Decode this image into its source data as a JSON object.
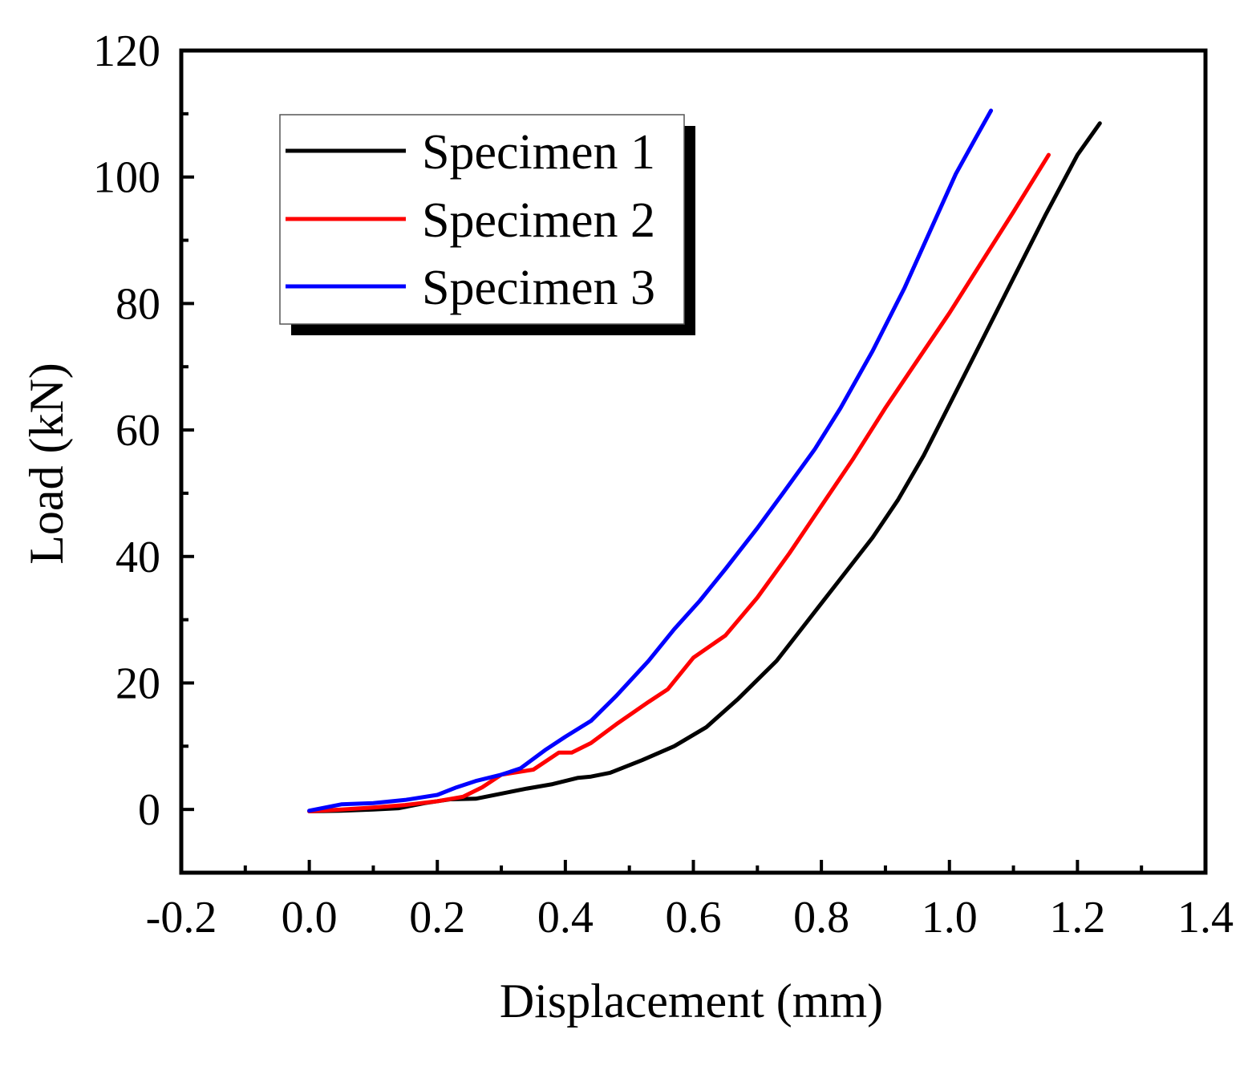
{
  "chart_data": {
    "type": "line",
    "xlabel": "Displacement (mm)",
    "ylabel": "Load (kN)",
    "xlim": [
      -0.2,
      1.4
    ],
    "ylim": [
      -10,
      120
    ],
    "xticks": [
      -0.2,
      0.0,
      0.2,
      0.4,
      0.6,
      0.8,
      1.0,
      1.2,
      1.4
    ],
    "xtick_labels": [
      "-0.2",
      "0.0",
      "0.2",
      "0.4",
      "0.6",
      "0.8",
      "1.0",
      "1.2",
      "1.4"
    ],
    "yticks": [
      0,
      20,
      40,
      60,
      80,
      100,
      120
    ],
    "ytick_labels": [
      "0",
      "20",
      "40",
      "60",
      "80",
      "100",
      "120"
    ],
    "grid": false,
    "legend_position": "top-left",
    "series": [
      {
        "name": "Specimen 1",
        "color": "#000000",
        "x": [
          0.0,
          0.05,
          0.1,
          0.14,
          0.18,
          0.22,
          0.26,
          0.3,
          0.34,
          0.38,
          0.42,
          0.44,
          0.47,
          0.52,
          0.57,
          0.62,
          0.67,
          0.73,
          0.78,
          0.83,
          0.88,
          0.92,
          0.96,
          1.0,
          1.05,
          1.1,
          1.15,
          1.2,
          1.235
        ],
        "y": [
          -0.3,
          -0.2,
          0.0,
          0.2,
          1.0,
          1.6,
          1.7,
          2.5,
          3.3,
          4.0,
          5.0,
          5.2,
          5.8,
          7.8,
          10.0,
          13.0,
          17.5,
          23.5,
          30.0,
          36.5,
          43.0,
          49.0,
          56.0,
          64.0,
          74.0,
          84.0,
          94.0,
          103.5,
          108.5
        ]
      },
      {
        "name": "Specimen 2",
        "color": "#ff0000",
        "x": [
          0.0,
          0.05,
          0.1,
          0.15,
          0.2,
          0.24,
          0.27,
          0.3,
          0.35,
          0.39,
          0.41,
          0.44,
          0.48,
          0.53,
          0.56,
          0.6,
          0.65,
          0.7,
          0.75,
          0.8,
          0.85,
          0.9,
          0.95,
          1.0,
          1.05,
          1.1,
          1.155
        ],
        "y": [
          -0.3,
          0.0,
          0.3,
          0.7,
          1.3,
          2.0,
          3.5,
          5.5,
          6.3,
          9.0,
          9.0,
          10.5,
          13.5,
          17.0,
          19.0,
          24.0,
          27.5,
          33.5,
          40.5,
          48.0,
          55.5,
          63.5,
          71.0,
          78.5,
          86.5,
          94.5,
          103.5
        ]
      },
      {
        "name": "Specimen 3",
        "color": "#0000ff",
        "x": [
          0.0,
          0.05,
          0.1,
          0.15,
          0.2,
          0.23,
          0.26,
          0.3,
          0.33,
          0.37,
          0.4,
          0.44,
          0.48,
          0.53,
          0.57,
          0.61,
          0.65,
          0.7,
          0.74,
          0.79,
          0.83,
          0.88,
          0.93,
          0.97,
          1.01,
          1.04,
          1.065
        ],
        "y": [
          -0.2,
          0.8,
          1.0,
          1.5,
          2.3,
          3.5,
          4.5,
          5.5,
          6.5,
          9.5,
          11.5,
          14.0,
          18.0,
          23.5,
          28.5,
          33.0,
          38.0,
          44.5,
          50.0,
          57.0,
          63.5,
          72.5,
          82.5,
          91.5,
          100.5,
          106.0,
          110.5
        ]
      }
    ]
  }
}
